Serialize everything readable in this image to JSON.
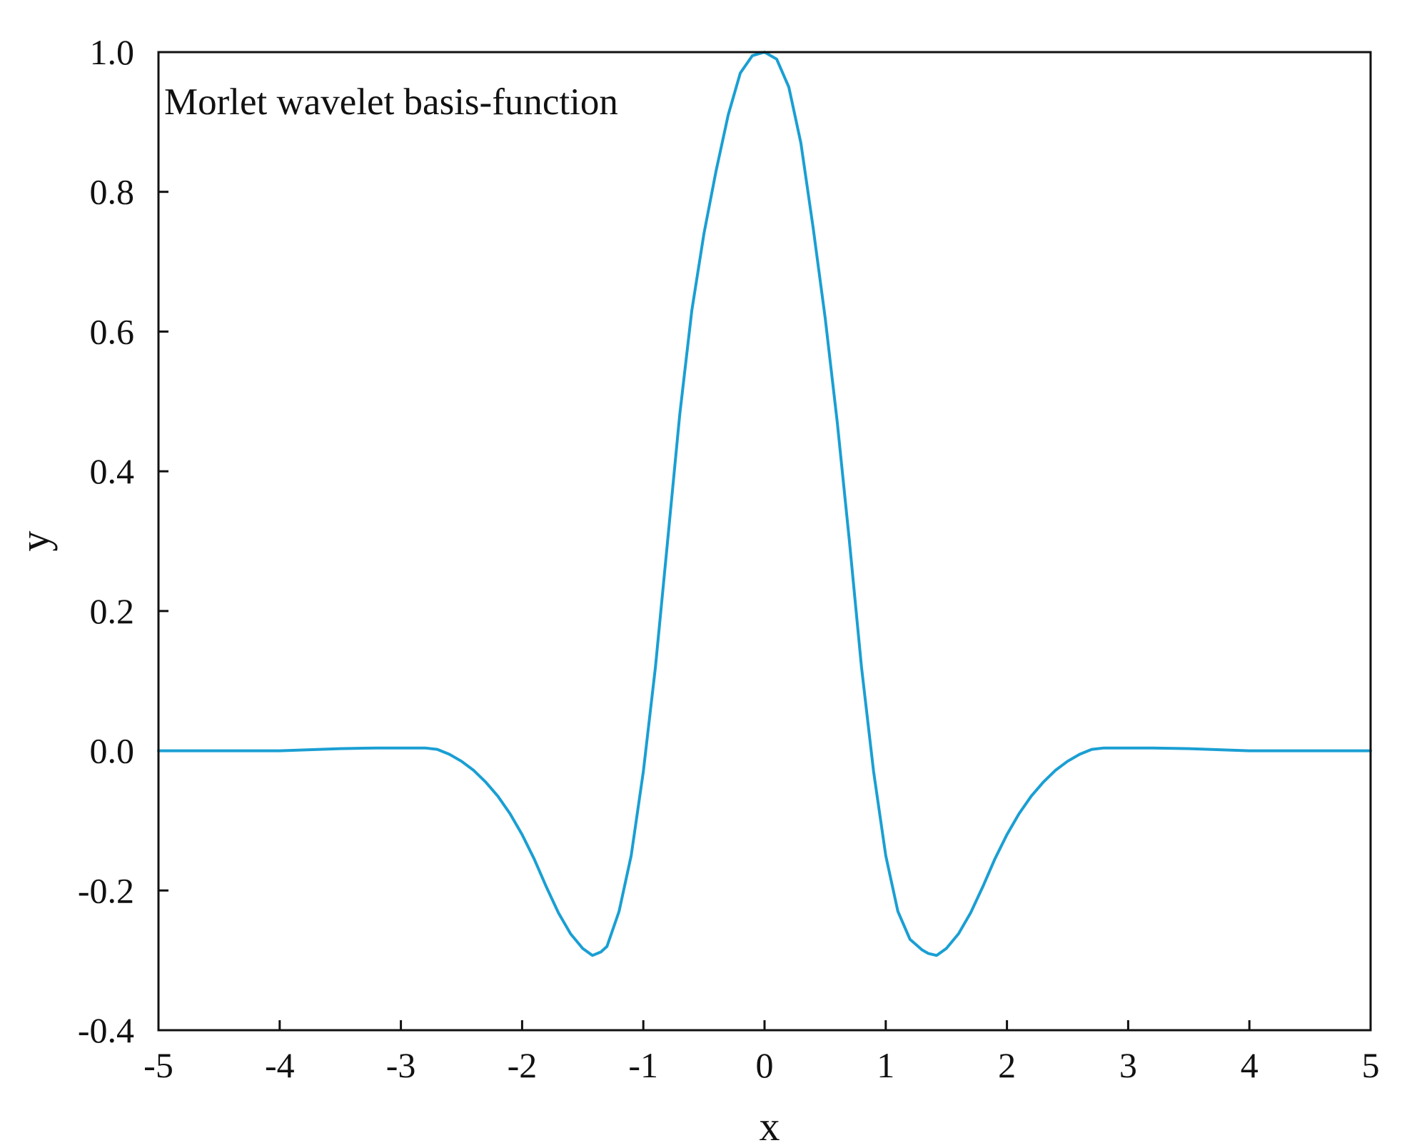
{
  "chart_data": {
    "type": "line",
    "title": "",
    "annotation": "Morlet wavelet basis-function",
    "xlabel": "x",
    "ylabel": "y",
    "xlim": [
      -5,
      5
    ],
    "ylim": [
      -0.4,
      1.0
    ],
    "xticks": [
      -5,
      -4,
      -3,
      -2,
      -1,
      0,
      1,
      2,
      3,
      4,
      5
    ],
    "xtick_labels": [
      "-5",
      "-4",
      "-3",
      "-2",
      "-1",
      "0",
      "1",
      "2",
      "3",
      "4",
      "5"
    ],
    "yticks": [
      -0.4,
      -0.2,
      0.0,
      0.2,
      0.4,
      0.6,
      0.8,
      1.0
    ],
    "ytick_labels": [
      "-0.4",
      "-0.2",
      "0.0",
      "0.2",
      "0.4",
      "0.6",
      "0.8",
      "1.0"
    ],
    "grid": false,
    "line_color": "#1a9fd3",
    "series": [
      {
        "x": [
          -5,
          -4.5,
          -4,
          -3.5,
          -3.2,
          -3,
          -2.8,
          -2.7,
          -2.6,
          -2.5,
          -2.4,
          -2.3,
          -2.2,
          -2.1,
          -2.0,
          -1.9,
          -1.8,
          -1.7,
          -1.6,
          -1.5,
          -1.42,
          -1.35,
          -1.3,
          -1.2,
          -1.1,
          -1.0,
          -0.9,
          -0.8,
          -0.7,
          -0.6,
          -0.5,
          -0.4,
          -0.3,
          -0.2,
          -0.1,
          0.0,
          0.1,
          0.2,
          0.3,
          0.4,
          0.5,
          0.6,
          0.7,
          0.8,
          0.9,
          1.0,
          1.1,
          1.2,
          1.3,
          1.35,
          1.42,
          1.5,
          1.6,
          1.7,
          1.8,
          1.9,
          2.0,
          2.1,
          2.2,
          2.3,
          2.4,
          2.5,
          2.6,
          2.7,
          2.8,
          3.0,
          3.2,
          3.5,
          4.0,
          4.5,
          5.0
        ],
        "y": [
          0.0,
          0.0,
          0.0,
          0.003,
          0.004,
          0.004,
          0.004,
          0.002,
          -0.005,
          -0.015,
          -0.028,
          -0.045,
          -0.065,
          -0.09,
          -0.12,
          -0.155,
          -0.195,
          -0.232,
          -0.262,
          -0.283,
          -0.293,
          -0.288,
          -0.28,
          -0.23,
          -0.15,
          -0.03,
          0.12,
          0.3,
          0.48,
          0.63,
          0.74,
          0.83,
          0.91,
          0.97,
          0.995,
          1.0,
          0.99,
          0.95,
          0.87,
          0.75,
          0.62,
          0.47,
          0.3,
          0.12,
          -0.03,
          -0.15,
          -0.23,
          -0.27,
          -0.285,
          -0.29,
          -0.293,
          -0.283,
          -0.262,
          -0.232,
          -0.195,
          -0.155,
          -0.12,
          -0.09,
          -0.065,
          -0.045,
          -0.028,
          -0.015,
          -0.005,
          0.002,
          0.004,
          0.004,
          0.004,
          0.003,
          0.0,
          0.0,
          0.0
        ]
      }
    ]
  }
}
